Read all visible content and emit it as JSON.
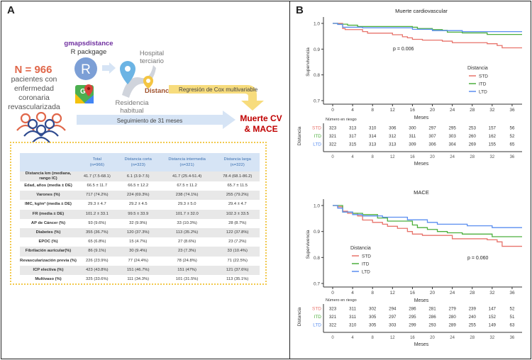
{
  "panelA": {
    "label": "A",
    "population": {
      "n": "N = 966",
      "desc": [
        "pacientes con",
        "enfermedad",
        "coronaria",
        "revascularizada"
      ]
    },
    "tools": {
      "package": "gmapsdistance",
      "package_sub": "R packgage"
    },
    "hospital": [
      "Hospital",
      "terciario"
    ],
    "residence": [
      "Residencia",
      "habitual"
    ],
    "distance_label": "Distancia",
    "cox_label": "Regresión de Cox multivariable",
    "followup_label": "Seguimiento de 31 meses",
    "outcome": [
      "Muerte CV",
      "& MACE"
    ],
    "colors": {
      "accent_red": "#e0674a",
      "purple": "#7030a0",
      "outcome_red": "#c00000",
      "yellow": "#f2c94c",
      "blue_arrow": "#d6e4f5",
      "header_blue": "#3a6fb0"
    },
    "table": {
      "headers": [
        {
          "title": "",
          "sub": ""
        },
        {
          "title": "Total",
          "sub": "(n=966)"
        },
        {
          "title": "Distancia corta",
          "sub": "(n=323)"
        },
        {
          "title": "Distancia intermedia",
          "sub": "(n=321)"
        },
        {
          "title": "Distancia larga",
          "sub": "(n=322)"
        }
      ],
      "rows": [
        {
          "label": "Distancia km (mediana, rango IC)",
          "values": [
            "41.7 (7.5-68.1)",
            "6.1 (3.9-7.5)",
            "41.7 (25.4-51.4)",
            "78.4 (68.1-86.2)"
          ]
        },
        {
          "label": "Edad, años (media ± DE)",
          "values": [
            "66.5 ± 11.7",
            "66.5 ± 12.2",
            "67.5 ± 11.2",
            "65.7 ± 11.5"
          ]
        },
        {
          "label": "Varones (%)",
          "values": [
            "717 (74.2%)",
            "224 (69.3%)",
            "238 (74.1%)",
            "255 (79.2%)"
          ]
        },
        {
          "label": "IMC, kg/m² (media ± DE)",
          "values": [
            "29.3 ± 4.7",
            "29.2 ± 4.5",
            "29.3 ± 5.0",
            "29.4 ± 4.7"
          ]
        },
        {
          "label": "FR (media ± DE)",
          "values": [
            "101.2 ± 33.1",
            "99.5 ± 33.9",
            "101.7 ± 32.0",
            "102.3 ± 33.5"
          ]
        },
        {
          "label": "AP de Cáncer (%)",
          "values": [
            "93 (9.6%)",
            "32 (9.9%)",
            "33 (10.3%)",
            "28 (8.7%)"
          ]
        },
        {
          "label": "Diabetes (%)",
          "values": [
            "355 (36.7%)",
            "120 (37.3%)",
            "113 (35.2%)",
            "122 (37.8%)"
          ]
        },
        {
          "label": "EPOC (%)",
          "values": [
            "65 (6.8%)",
            "15 (4.7%)",
            "27 (8.6%)",
            "23 (7.2%)"
          ]
        },
        {
          "label": "Fibrilación auricular(%)",
          "values": [
            "86 (9.1%)",
            "30 (9.4%)",
            "23 (7.3%)",
            "33 (10.4%)"
          ]
        },
        {
          "label": "Revascularización previa (%)",
          "values": [
            "226 (23.9%)",
            "77 (24.4%)",
            "78 (24.8%)",
            "71 (22.5%)"
          ]
        },
        {
          "label": "ICP electiva (%)",
          "values": [
            "423 (43.8%)",
            "151 (46.7%)",
            "151 (47%)",
            "121 (37.6%)"
          ]
        },
        {
          "label": "Multivaso (%)",
          "values": [
            "325 (33.6%)",
            "111 (34.3%)",
            "101 (31.5%)",
            "113 (35.1%)"
          ]
        }
      ]
    }
  },
  "panelB": {
    "label": "B"
  },
  "chart_data": [
    {
      "type": "line",
      "title": "Muerte cardiovascular",
      "xlabel": "Meses",
      "ylabel": "Supervivencia",
      "xlim": [
        0,
        38
      ],
      "ylim": [
        0.7,
        1.0
      ],
      "xticks": [
        0,
        4,
        8,
        12,
        16,
        20,
        24,
        28,
        32,
        36
      ],
      "yticks": [
        "0.7",
        "0.8",
        "0.9",
        "1.0"
      ],
      "pvalue": "p = 0.006",
      "legend_title": "Distancia",
      "legend_position": "right",
      "series": [
        {
          "name": "STD",
          "color": "#e8736b",
          "x": [
            0,
            2,
            2.5,
            6,
            7,
            12,
            14,
            15,
            16,
            18,
            22,
            24,
            31,
            33,
            34,
            38
          ],
          "y": [
            1.0,
            0.98,
            0.976,
            0.968,
            0.962,
            0.956,
            0.948,
            0.944,
            0.938,
            0.935,
            0.931,
            0.925,
            0.921,
            0.914,
            0.905,
            0.905
          ]
        },
        {
          "name": "ITD",
          "color": "#4caf3c",
          "x": [
            0,
            1,
            3,
            5,
            16,
            17,
            20,
            22,
            23,
            26,
            31,
            38
          ],
          "y": [
            1.0,
            0.997,
            0.993,
            0.988,
            0.985,
            0.98,
            0.976,
            0.973,
            0.966,
            0.963,
            0.957,
            0.957
          ]
        },
        {
          "name": "LTD",
          "color": "#5a8ef0",
          "x": [
            0,
            1,
            2,
            6,
            16,
            20,
            26,
            38
          ],
          "y": [
            1.0,
            0.996,
            0.985,
            0.983,
            0.977,
            0.972,
            0.968,
            0.968
          ]
        }
      ],
      "risk_table": {
        "title": "Número en riesgo",
        "ylabel": "Distancia",
        "xlabel": "Meses",
        "times": [
          0,
          4,
          8,
          12,
          16,
          20,
          24,
          28,
          32,
          36
        ],
        "rows": [
          {
            "name": "STD",
            "values": [
              323,
              313,
              310,
              306,
              300,
              297,
              295,
              253,
              157,
              56
            ]
          },
          {
            "name": "ITD",
            "values": [
              321,
              317,
              314,
              312,
              311,
              307,
              303,
              260,
              162,
              52
            ]
          },
          {
            "name": "LTD",
            "values": [
              322,
              315,
              313,
              313,
              309,
              306,
              304,
              269,
              155,
              65
            ]
          }
        ]
      }
    },
    {
      "type": "line",
      "title": "MACE",
      "xlabel": "Meses",
      "ylabel": "Supervivencia",
      "xlim": [
        0,
        38
      ],
      "ylim": [
        0.7,
        1.0
      ],
      "xticks": [
        0,
        4,
        8,
        12,
        16,
        20,
        24,
        28,
        32,
        36
      ],
      "yticks": [
        "0.7",
        "0.8",
        "0.9",
        "1.0"
      ],
      "pvalue": "p = 0.060",
      "legend_title": "Distancia",
      "legend_position": "left",
      "series": [
        {
          "name": "STD",
          "color": "#e8736b",
          "x": [
            0,
            1,
            2,
            3,
            5,
            6,
            8,
            10,
            11,
            13,
            15,
            16,
            18,
            24,
            31,
            33,
            34,
            38
          ],
          "y": [
            1.0,
            0.995,
            0.978,
            0.97,
            0.96,
            0.944,
            0.935,
            0.928,
            0.92,
            0.912,
            0.9,
            0.89,
            0.885,
            0.872,
            0.868,
            0.86,
            0.843,
            0.843
          ]
        },
        {
          "name": "ITD",
          "color": "#4caf3c",
          "x": [
            0,
            2,
            4,
            6,
            9,
            11,
            16,
            17,
            19,
            21,
            23,
            26,
            32,
            38
          ],
          "y": [
            1.0,
            0.975,
            0.97,
            0.965,
            0.952,
            0.94,
            0.925,
            0.915,
            0.908,
            0.9,
            0.895,
            0.89,
            0.88,
            0.88
          ]
        },
        {
          "name": "LTD",
          "color": "#5a8ef0",
          "x": [
            0,
            1,
            2,
            4,
            6,
            10,
            15,
            19,
            21,
            27,
            32,
            38
          ],
          "y": [
            1.0,
            0.99,
            0.975,
            0.965,
            0.96,
            0.955,
            0.945,
            0.935,
            0.928,
            0.922,
            0.915,
            0.915
          ]
        }
      ],
      "risk_table": {
        "title": "Número en riesgo",
        "ylabel": "Distancia",
        "xlabel": "Meses",
        "times": [
          0,
          4,
          8,
          12,
          16,
          20,
          24,
          28,
          32,
          36
        ],
        "rows": [
          {
            "name": "STD",
            "values": [
              323,
              311,
              302,
              294,
              286,
              281,
              279,
              239,
              147,
              52
            ]
          },
          {
            "name": "ITD",
            "values": [
              321,
              311,
              305,
              297,
              295,
              286,
              280,
              240,
              152,
              51
            ]
          },
          {
            "name": "LTD",
            "values": [
              322,
              310,
              305,
              303,
              299,
              293,
              289,
              255,
              149,
              63
            ]
          }
        ]
      }
    }
  ]
}
